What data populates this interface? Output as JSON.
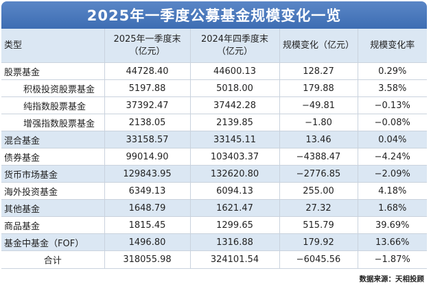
{
  "title": "2025年一季度公募基金规模变化一览",
  "headers": {
    "col1": "类型",
    "col2_line1": "2025年一季度末",
    "col2_line2": "（亿元）",
    "col3_line1": "2024年四季度末",
    "col3_line2": "（亿元）",
    "col4": "规模变化（亿元）",
    "col5": "规模变化率"
  },
  "rows": [
    {
      "name": "股票基金",
      "q1_2025": "44728.40",
      "q4_2024": "44600.13",
      "change": "128.27",
      "rate": "0.29%"
    },
    {
      "name": "积极投资股票基金",
      "q1_2025": "5197.88",
      "q4_2024": "5018.00",
      "change": "179.88",
      "rate": "3.58%"
    },
    {
      "name": "纯指数股票基金",
      "q1_2025": "37392.47",
      "q4_2024": "37442.28",
      "change": "−49.81",
      "rate": "−0.13%"
    },
    {
      "name": "增强指数股票基金",
      "q1_2025": "2138.05",
      "q4_2024": "2139.85",
      "change": "−1.80",
      "rate": "−0.08%"
    },
    {
      "name": "混合基金",
      "q1_2025": "33158.57",
      "q4_2024": "33145.11",
      "change": "13.46",
      "rate": "0.04%"
    },
    {
      "name": "债券基金",
      "q1_2025": "99014.90",
      "q4_2024": "103403.37",
      "change": "−4388.47",
      "rate": "−4.24%"
    },
    {
      "name": "货币市场基金",
      "q1_2025": "129843.95",
      "q4_2024": "132620.80",
      "change": "−2776.85",
      "rate": "−2.09%"
    },
    {
      "name": "海外投资基金",
      "q1_2025": "6349.13",
      "q4_2024": "6094.13",
      "change": "255.00",
      "rate": "4.18%"
    },
    {
      "name": "其他基金",
      "q1_2025": "1648.79",
      "q4_2024": "1621.47",
      "change": "27.32",
      "rate": "1.68%"
    },
    {
      "name": "商品基金",
      "q1_2025": "1815.45",
      "q4_2024": "1299.65",
      "change": "515.79",
      "rate": "39.69%"
    },
    {
      "name": "基金中基金（FOF）",
      "q1_2025": "1496.80",
      "q4_2024": "1316.88",
      "change": "179.92",
      "rate": "13.66%"
    }
  ],
  "total": {
    "name": "合计",
    "q1_2025": "318055.98",
    "q4_2024": "324101.54",
    "change": "−6045.56",
    "rate": "−1.87%"
  },
  "source": "数据来源：天相投顾",
  "colors": {
    "title_bar": "#4a78bd",
    "header_bg": "#dbe7f3",
    "alt_row_bg": "#dbe7f3",
    "border": "#c9d2dd"
  }
}
